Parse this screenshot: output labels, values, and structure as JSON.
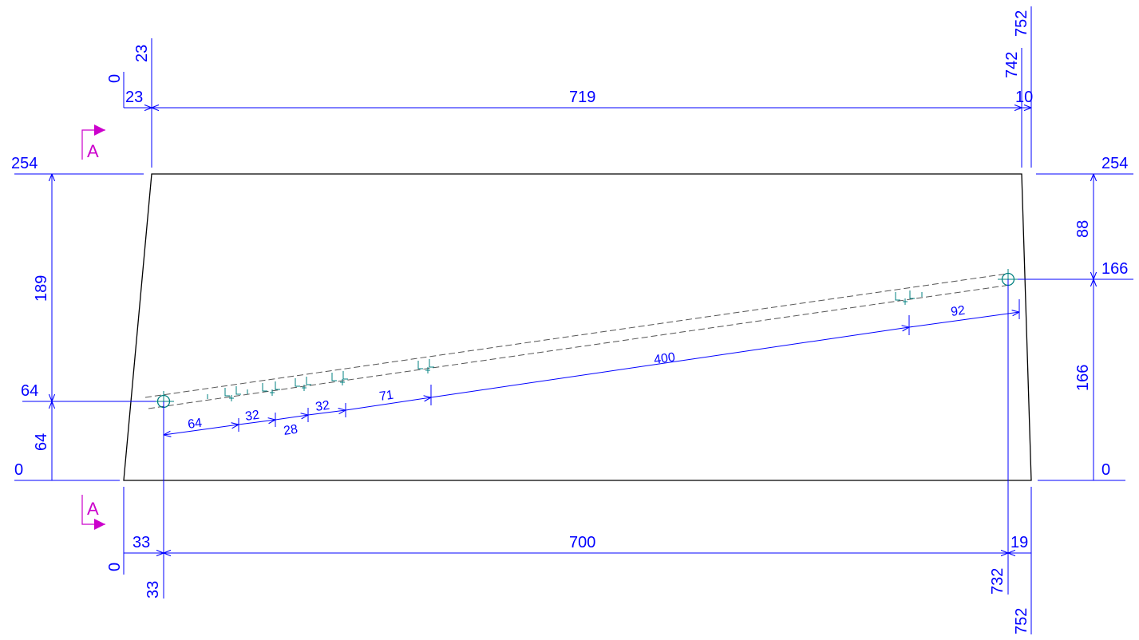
{
  "colors": {
    "outline": "#000000",
    "dimension": "#0000ff",
    "section": "#cc00cc",
    "rebar": "#008080",
    "background": "#ffffff"
  },
  "section_marks": {
    "top": "A",
    "bottom": "A"
  },
  "top_chain": {
    "left_0": "0",
    "vertical_23": "23",
    "seg_left": "23",
    "seg_main": "719",
    "seg_right": "10",
    "vertical_742": "742",
    "vertical_752": "752"
  },
  "bottom_chain": {
    "left_0": "0",
    "seg_left": "33",
    "vertical_33": "33",
    "seg_main": "700",
    "seg_right": "19",
    "vertical_732": "732",
    "vertical_752": "752"
  },
  "left_levels": {
    "top": "254",
    "mid": "64",
    "bottom": "0",
    "span_upper": "189",
    "span_lower": "64"
  },
  "right_levels": {
    "top": "254",
    "mid": "166",
    "bottom": "0",
    "span_upper": "88",
    "span_lower": "166"
  },
  "rebar_chain": [
    "64",
    "32",
    "28",
    "32",
    "71",
    "400",
    "92"
  ]
}
